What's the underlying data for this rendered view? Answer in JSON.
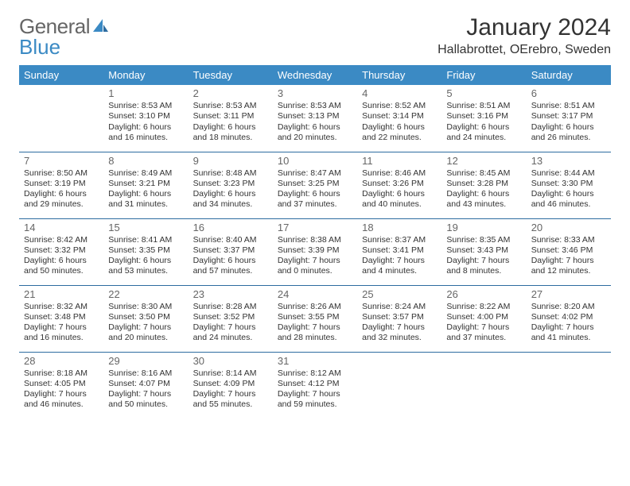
{
  "brand": {
    "text1": "General",
    "text2": "Blue",
    "color1": "#666666",
    "color2": "#3b8ac4"
  },
  "title": "January 2024",
  "location": "Hallabrottet, OErebro, Sweden",
  "header_bg": "#3b8ac4",
  "header_fg": "#ffffff",
  "divider_color": "#2d6ca0",
  "text_color": "#333333",
  "daynum_color": "#666666",
  "page_bg": "#ffffff",
  "font_size_title": 30,
  "font_size_location": 16,
  "font_size_dayhdr": 13,
  "font_size_cell": 10.5,
  "day_headers": [
    "Sunday",
    "Monday",
    "Tuesday",
    "Wednesday",
    "Thursday",
    "Friday",
    "Saturday"
  ],
  "weeks": [
    [
      null,
      {
        "n": "1",
        "sr": "Sunrise: 8:53 AM",
        "ss": "Sunset: 3:10 PM",
        "d1": "Daylight: 6 hours",
        "d2": "and 16 minutes."
      },
      {
        "n": "2",
        "sr": "Sunrise: 8:53 AM",
        "ss": "Sunset: 3:11 PM",
        "d1": "Daylight: 6 hours",
        "d2": "and 18 minutes."
      },
      {
        "n": "3",
        "sr": "Sunrise: 8:53 AM",
        "ss": "Sunset: 3:13 PM",
        "d1": "Daylight: 6 hours",
        "d2": "and 20 minutes."
      },
      {
        "n": "4",
        "sr": "Sunrise: 8:52 AM",
        "ss": "Sunset: 3:14 PM",
        "d1": "Daylight: 6 hours",
        "d2": "and 22 minutes."
      },
      {
        "n": "5",
        "sr": "Sunrise: 8:51 AM",
        "ss": "Sunset: 3:16 PM",
        "d1": "Daylight: 6 hours",
        "d2": "and 24 minutes."
      },
      {
        "n": "6",
        "sr": "Sunrise: 8:51 AM",
        "ss": "Sunset: 3:17 PM",
        "d1": "Daylight: 6 hours",
        "d2": "and 26 minutes."
      }
    ],
    [
      {
        "n": "7",
        "sr": "Sunrise: 8:50 AM",
        "ss": "Sunset: 3:19 PM",
        "d1": "Daylight: 6 hours",
        "d2": "and 29 minutes."
      },
      {
        "n": "8",
        "sr": "Sunrise: 8:49 AM",
        "ss": "Sunset: 3:21 PM",
        "d1": "Daylight: 6 hours",
        "d2": "and 31 minutes."
      },
      {
        "n": "9",
        "sr": "Sunrise: 8:48 AM",
        "ss": "Sunset: 3:23 PM",
        "d1": "Daylight: 6 hours",
        "d2": "and 34 minutes."
      },
      {
        "n": "10",
        "sr": "Sunrise: 8:47 AM",
        "ss": "Sunset: 3:25 PM",
        "d1": "Daylight: 6 hours",
        "d2": "and 37 minutes."
      },
      {
        "n": "11",
        "sr": "Sunrise: 8:46 AM",
        "ss": "Sunset: 3:26 PM",
        "d1": "Daylight: 6 hours",
        "d2": "and 40 minutes."
      },
      {
        "n": "12",
        "sr": "Sunrise: 8:45 AM",
        "ss": "Sunset: 3:28 PM",
        "d1": "Daylight: 6 hours",
        "d2": "and 43 minutes."
      },
      {
        "n": "13",
        "sr": "Sunrise: 8:44 AM",
        "ss": "Sunset: 3:30 PM",
        "d1": "Daylight: 6 hours",
        "d2": "and 46 minutes."
      }
    ],
    [
      {
        "n": "14",
        "sr": "Sunrise: 8:42 AM",
        "ss": "Sunset: 3:32 PM",
        "d1": "Daylight: 6 hours",
        "d2": "and 50 minutes."
      },
      {
        "n": "15",
        "sr": "Sunrise: 8:41 AM",
        "ss": "Sunset: 3:35 PM",
        "d1": "Daylight: 6 hours",
        "d2": "and 53 minutes."
      },
      {
        "n": "16",
        "sr": "Sunrise: 8:40 AM",
        "ss": "Sunset: 3:37 PM",
        "d1": "Daylight: 6 hours",
        "d2": "and 57 minutes."
      },
      {
        "n": "17",
        "sr": "Sunrise: 8:38 AM",
        "ss": "Sunset: 3:39 PM",
        "d1": "Daylight: 7 hours",
        "d2": "and 0 minutes."
      },
      {
        "n": "18",
        "sr": "Sunrise: 8:37 AM",
        "ss": "Sunset: 3:41 PM",
        "d1": "Daylight: 7 hours",
        "d2": "and 4 minutes."
      },
      {
        "n": "19",
        "sr": "Sunrise: 8:35 AM",
        "ss": "Sunset: 3:43 PM",
        "d1": "Daylight: 7 hours",
        "d2": "and 8 minutes."
      },
      {
        "n": "20",
        "sr": "Sunrise: 8:33 AM",
        "ss": "Sunset: 3:46 PM",
        "d1": "Daylight: 7 hours",
        "d2": "and 12 minutes."
      }
    ],
    [
      {
        "n": "21",
        "sr": "Sunrise: 8:32 AM",
        "ss": "Sunset: 3:48 PM",
        "d1": "Daylight: 7 hours",
        "d2": "and 16 minutes."
      },
      {
        "n": "22",
        "sr": "Sunrise: 8:30 AM",
        "ss": "Sunset: 3:50 PM",
        "d1": "Daylight: 7 hours",
        "d2": "and 20 minutes."
      },
      {
        "n": "23",
        "sr": "Sunrise: 8:28 AM",
        "ss": "Sunset: 3:52 PM",
        "d1": "Daylight: 7 hours",
        "d2": "and 24 minutes."
      },
      {
        "n": "24",
        "sr": "Sunrise: 8:26 AM",
        "ss": "Sunset: 3:55 PM",
        "d1": "Daylight: 7 hours",
        "d2": "and 28 minutes."
      },
      {
        "n": "25",
        "sr": "Sunrise: 8:24 AM",
        "ss": "Sunset: 3:57 PM",
        "d1": "Daylight: 7 hours",
        "d2": "and 32 minutes."
      },
      {
        "n": "26",
        "sr": "Sunrise: 8:22 AM",
        "ss": "Sunset: 4:00 PM",
        "d1": "Daylight: 7 hours",
        "d2": "and 37 minutes."
      },
      {
        "n": "27",
        "sr": "Sunrise: 8:20 AM",
        "ss": "Sunset: 4:02 PM",
        "d1": "Daylight: 7 hours",
        "d2": "and 41 minutes."
      }
    ],
    [
      {
        "n": "28",
        "sr": "Sunrise: 8:18 AM",
        "ss": "Sunset: 4:05 PM",
        "d1": "Daylight: 7 hours",
        "d2": "and 46 minutes."
      },
      {
        "n": "29",
        "sr": "Sunrise: 8:16 AM",
        "ss": "Sunset: 4:07 PM",
        "d1": "Daylight: 7 hours",
        "d2": "and 50 minutes."
      },
      {
        "n": "30",
        "sr": "Sunrise: 8:14 AM",
        "ss": "Sunset: 4:09 PM",
        "d1": "Daylight: 7 hours",
        "d2": "and 55 minutes."
      },
      {
        "n": "31",
        "sr": "Sunrise: 8:12 AM",
        "ss": "Sunset: 4:12 PM",
        "d1": "Daylight: 7 hours",
        "d2": "and 59 minutes."
      },
      null,
      null,
      null
    ]
  ]
}
